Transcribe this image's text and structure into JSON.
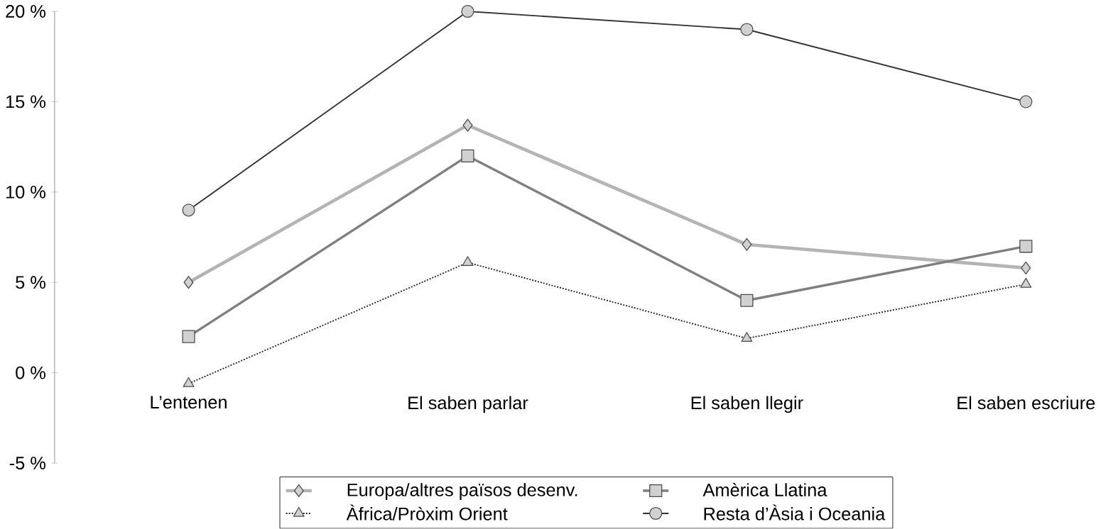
{
  "chart_data": {
    "type": "line",
    "categories": [
      "L’entenen",
      "El saben parlar",
      "El saben llegir",
      "El saben escriure"
    ],
    "series": [
      {
        "name": "Europa/altres països desenv.",
        "color": "#b4b4b4",
        "values": [
          5,
          13.7,
          7.1,
          5.8
        ],
        "marker": "diamond",
        "line_style": "solid"
      },
      {
        "name": "Amèrica Llatina",
        "color": "#7f7f7f",
        "values": [
          2,
          12,
          4,
          7
        ],
        "marker": "square",
        "line_style": "solid"
      },
      {
        "name": "Àfrica/Pròxim Orient",
        "color": "#222222",
        "values": [
          -0.6,
          6.1,
          1.9,
          4.9
        ],
        "marker": "triangle",
        "line_style": "dotted"
      },
      {
        "name": "Resta d’Àsia i Oceania",
        "color": "#333333",
        "values": [
          9,
          20,
          19,
          15
        ],
        "marker": "circle",
        "line_style": "solid"
      }
    ],
    "ylim": [
      -5,
      20
    ],
    "yticks": [
      {
        "value": -5,
        "label": "-5 %"
      },
      {
        "value": 0,
        "label": "0 %"
      },
      {
        "value": 5,
        "label": "5 %"
      },
      {
        "value": 10,
        "label": "10 %"
      },
      {
        "value": 15,
        "label": "15 %"
      },
      {
        "value": 20,
        "label": "20 %"
      }
    ],
    "grid": false,
    "legend": "bottom"
  }
}
